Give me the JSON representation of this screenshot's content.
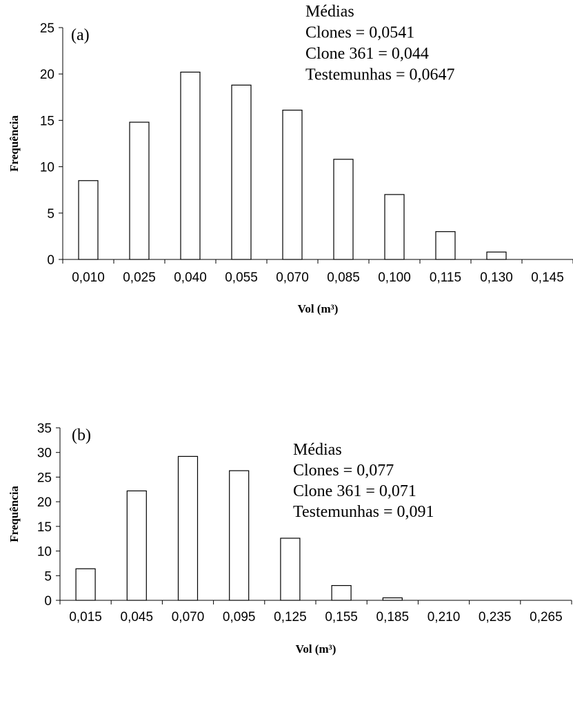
{
  "chart_data": [
    {
      "type": "bar",
      "panel_label": "(a)",
      "categories": [
        "0,010",
        "0,025",
        "0,040",
        "0,055",
        "0,070",
        "0,085",
        "0,100",
        "0,115",
        "0,130",
        "0,145"
      ],
      "values": [
        8.5,
        14.8,
        20.2,
        18.8,
        16.1,
        10.8,
        7.0,
        3.0,
        0.8,
        0
      ],
      "xlabel": "Vol (m³)",
      "ylabel": "Frequência",
      "ylim": [
        0,
        25
      ],
      "yticks": [
        0,
        5,
        10,
        15,
        20,
        25
      ],
      "grid": false,
      "bar_fill": "#ffffff",
      "bar_stroke": "#000000",
      "annotations": [
        "Médias",
        "Clones = 0,0541",
        "Clone 361 = 0,044",
        "Testemunhas = 0,0647"
      ]
    },
    {
      "type": "bar",
      "panel_label": "(b)",
      "categories": [
        "0,015",
        "0,045",
        "0,070",
        "0,095",
        "0,125",
        "0,155",
        "0,185",
        "0,210",
        "0,235",
        "0,265"
      ],
      "values": [
        6.4,
        22.2,
        29.2,
        26.3,
        12.6,
        3.0,
        0.5,
        0,
        0,
        0
      ],
      "xlabel": "Vol (m³)",
      "ylabel": "Frequência",
      "ylim": [
        0,
        35
      ],
      "yticks": [
        0,
        5,
        10,
        15,
        20,
        25,
        30,
        35
      ],
      "grid": false,
      "bar_fill": "#ffffff",
      "bar_stroke": "#000000",
      "annotations": [
        "Médias",
        "Clones = 0,077",
        "Clone 361 = 0,071",
        "Testemunhas = 0,091"
      ]
    }
  ]
}
